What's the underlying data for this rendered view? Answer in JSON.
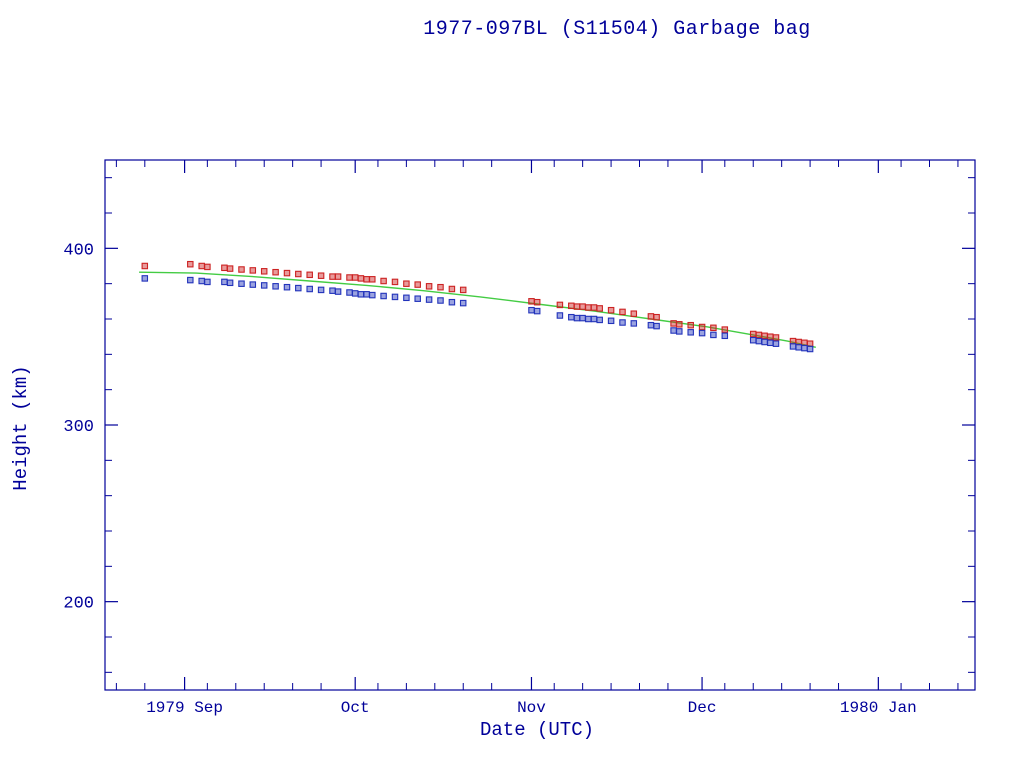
{
  "chart_data": {
    "type": "scatter",
    "title": "1977-097BL (S11504) Garbage bag",
    "xlabel": "Date (UTC)",
    "ylabel": "Height (km)",
    "xlim": [
      "1979-08-18",
      "1980-01-18"
    ],
    "ylim": [
      150,
      450
    ],
    "grid": false,
    "legend": "none",
    "x_ticks": [
      {
        "date": "1979-09-01",
        "label": "1979 Sep"
      },
      {
        "date": "1979-10-01",
        "label": "Oct"
      },
      {
        "date": "1979-11-01",
        "label": "Nov"
      },
      {
        "date": "1979-12-01",
        "label": "Dec"
      },
      {
        "date": "1980-01-01",
        "label": "1980 Jan"
      }
    ],
    "y_ticks": [
      200,
      300,
      400
    ],
    "y_minor_step": 20,
    "colors": {
      "axis": "#000099",
      "text": "#000099",
      "apogee": "#cc2222",
      "perigee": "#2233bb",
      "fit": "#44cc44",
      "background": "#ffffff"
    },
    "series": [
      {
        "name": "apogee-height",
        "type": "scatter",
        "marker": "square",
        "color_key": "apogee",
        "points": [
          [
            "1979-08-25",
            390
          ],
          [
            "1979-09-02",
            391
          ],
          [
            "1979-09-04",
            390
          ],
          [
            "1979-09-05",
            389.5
          ],
          [
            "1979-09-08",
            389
          ],
          [
            "1979-09-09",
            388.5
          ],
          [
            "1979-09-11",
            388
          ],
          [
            "1979-09-13",
            387.5
          ],
          [
            "1979-09-15",
            387
          ],
          [
            "1979-09-17",
            386.5
          ],
          [
            "1979-09-19",
            386
          ],
          [
            "1979-09-21",
            385.5
          ],
          [
            "1979-09-23",
            385
          ],
          [
            "1979-09-25",
            384.5
          ],
          [
            "1979-09-27",
            384
          ],
          [
            "1979-09-28",
            384
          ],
          [
            "1979-09-30",
            383.5
          ],
          [
            "1979-10-01",
            383.5
          ],
          [
            "1979-10-02",
            383
          ],
          [
            "1979-10-03",
            382.5
          ],
          [
            "1979-10-04",
            382.5
          ],
          [
            "1979-10-06",
            381.5
          ],
          [
            "1979-10-08",
            381
          ],
          [
            "1979-10-10",
            380
          ],
          [
            "1979-10-12",
            379.5
          ],
          [
            "1979-10-14",
            378.5
          ],
          [
            "1979-10-16",
            378
          ],
          [
            "1979-10-18",
            377
          ],
          [
            "1979-10-20",
            376.5
          ],
          [
            "1979-11-01",
            370
          ],
          [
            "1979-11-02",
            369.5
          ],
          [
            "1979-11-06",
            368
          ],
          [
            "1979-11-08",
            367.5
          ],
          [
            "1979-11-09",
            367
          ],
          [
            "1979-11-10",
            367
          ],
          [
            "1979-11-11",
            366.5
          ],
          [
            "1979-11-12",
            366.5
          ],
          [
            "1979-11-13",
            366
          ],
          [
            "1979-11-15",
            365
          ],
          [
            "1979-11-17",
            364
          ],
          [
            "1979-11-19",
            363
          ],
          [
            "1979-11-22",
            361.5
          ],
          [
            "1979-11-23",
            361
          ],
          [
            "1979-11-26",
            357.5
          ],
          [
            "1979-11-27",
            357
          ],
          [
            "1979-11-29",
            356.5
          ],
          [
            "1979-12-01",
            355.5
          ],
          [
            "1979-12-03",
            355
          ],
          [
            "1979-12-05",
            354
          ],
          [
            "1979-12-10",
            351.5
          ],
          [
            "1979-12-11",
            351
          ],
          [
            "1979-12-12",
            350.5
          ],
          [
            "1979-12-13",
            350
          ],
          [
            "1979-12-14",
            349.5
          ],
          [
            "1979-12-17",
            347.5
          ],
          [
            "1979-12-18",
            347
          ],
          [
            "1979-12-19",
            346.5
          ],
          [
            "1979-12-20",
            346
          ]
        ]
      },
      {
        "name": "perigee-height",
        "type": "scatter",
        "marker": "square",
        "color_key": "perigee",
        "points": [
          [
            "1979-08-25",
            383
          ],
          [
            "1979-09-02",
            382
          ],
          [
            "1979-09-04",
            381.5
          ],
          [
            "1979-09-05",
            381
          ],
          [
            "1979-09-08",
            381
          ],
          [
            "1979-09-09",
            380.5
          ],
          [
            "1979-09-11",
            380
          ],
          [
            "1979-09-13",
            379.5
          ],
          [
            "1979-09-15",
            379
          ],
          [
            "1979-09-17",
            378.5
          ],
          [
            "1979-09-19",
            378
          ],
          [
            "1979-09-21",
            377.5
          ],
          [
            "1979-09-23",
            377
          ],
          [
            "1979-09-25",
            376.5
          ],
          [
            "1979-09-27",
            376
          ],
          [
            "1979-09-28",
            375.5
          ],
          [
            "1979-09-30",
            375
          ],
          [
            "1979-10-01",
            374.5
          ],
          [
            "1979-10-02",
            374
          ],
          [
            "1979-10-03",
            374
          ],
          [
            "1979-10-04",
            373.5
          ],
          [
            "1979-10-06",
            373
          ],
          [
            "1979-10-08",
            372.5
          ],
          [
            "1979-10-10",
            372
          ],
          [
            "1979-10-12",
            371.5
          ],
          [
            "1979-10-14",
            371
          ],
          [
            "1979-10-16",
            370.5
          ],
          [
            "1979-10-18",
            369.5
          ],
          [
            "1979-10-20",
            369
          ],
          [
            "1979-11-01",
            365
          ],
          [
            "1979-11-02",
            364.5
          ],
          [
            "1979-11-06",
            362
          ],
          [
            "1979-11-08",
            361
          ],
          [
            "1979-11-09",
            360.5
          ],
          [
            "1979-11-10",
            360.5
          ],
          [
            "1979-11-11",
            360
          ],
          [
            "1979-11-12",
            360
          ],
          [
            "1979-11-13",
            359.5
          ],
          [
            "1979-11-15",
            359
          ],
          [
            "1979-11-17",
            358
          ],
          [
            "1979-11-19",
            357.5
          ],
          [
            "1979-11-22",
            356.5
          ],
          [
            "1979-11-23",
            356
          ],
          [
            "1979-11-26",
            353.5
          ],
          [
            "1979-11-27",
            353
          ],
          [
            "1979-11-29",
            352.5
          ],
          [
            "1979-12-01",
            352
          ],
          [
            "1979-12-03",
            351
          ],
          [
            "1979-12-05",
            350.5
          ],
          [
            "1979-12-10",
            348
          ],
          [
            "1979-12-11",
            347.5
          ],
          [
            "1979-12-12",
            347
          ],
          [
            "1979-12-13",
            346.5
          ],
          [
            "1979-12-14",
            346
          ],
          [
            "1979-12-17",
            344.5
          ],
          [
            "1979-12-18",
            344
          ],
          [
            "1979-12-19",
            343.5
          ],
          [
            "1979-12-20",
            343
          ]
        ]
      },
      {
        "name": "mean-height-fit",
        "type": "line",
        "color_key": "fit",
        "points": [
          [
            "1979-08-24",
            386.5
          ],
          [
            "1979-09-03",
            386
          ],
          [
            "1979-09-13",
            384
          ],
          [
            "1979-09-23",
            381.5
          ],
          [
            "1979-10-03",
            379
          ],
          [
            "1979-10-13",
            376
          ],
          [
            "1979-10-23",
            372.5
          ],
          [
            "1979-11-02",
            368.5
          ],
          [
            "1979-11-12",
            364.5
          ],
          [
            "1979-11-22",
            360
          ],
          [
            "1979-12-02",
            355.5
          ],
          [
            "1979-12-10",
            351
          ],
          [
            "1979-12-16",
            347.5
          ],
          [
            "1979-12-21",
            344
          ]
        ]
      }
    ]
  }
}
